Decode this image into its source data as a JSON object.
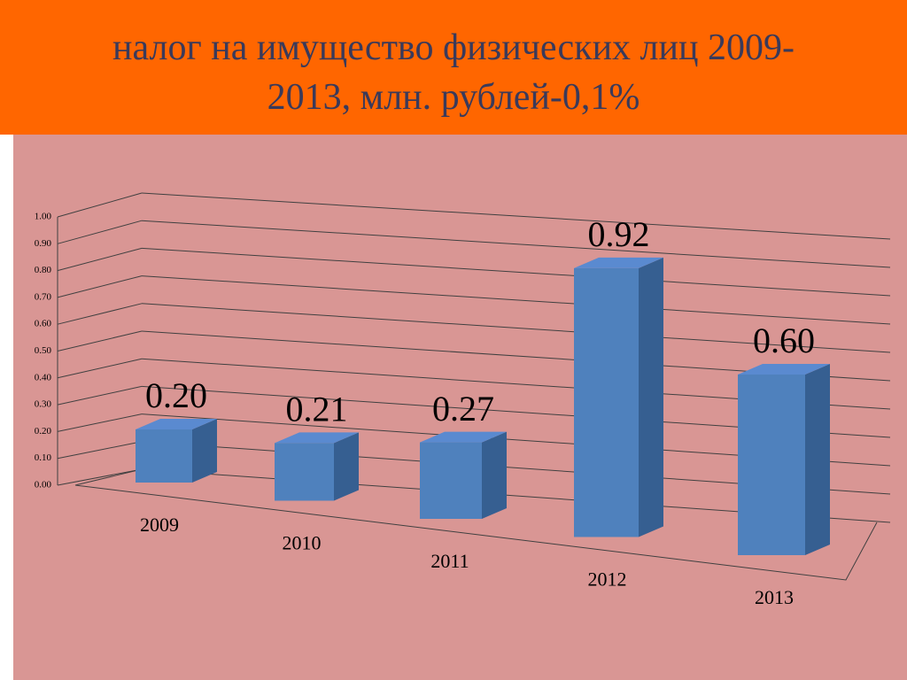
{
  "chart_data": {
    "type": "bar",
    "title": "налог на имущество физических лиц 2009-2013, млн. рублей-0,1%",
    "categories": [
      "2009",
      "2010",
      "2011",
      "2012",
      "2013"
    ],
    "values": [
      0.2,
      0.21,
      0.27,
      0.92,
      0.6
    ],
    "value_labels": [
      "0.20",
      "0.21",
      "0.27",
      "0.92",
      "0.60"
    ],
    "color": "#4f81bd",
    "ylim": [
      0,
      1
    ],
    "yticks": [
      {
        "value": 0,
        "label": "0.00"
      },
      {
        "value": 0.1,
        "label": "0.10"
      },
      {
        "value": 0.2,
        "label": "0.20"
      },
      {
        "value": 0.3,
        "label": "0.30"
      },
      {
        "value": 0.4,
        "label": "0.40"
      },
      {
        "value": 0.5,
        "label": "0.50"
      },
      {
        "value": 0.6,
        "label": "0.60"
      },
      {
        "value": 0.7,
        "label": "0.70"
      },
      {
        "value": 0.8,
        "label": "0.80"
      },
      {
        "value": 0.9,
        "label": "0.90"
      },
      {
        "value": 1,
        "label": "1.00"
      }
    ],
    "grid": true
  }
}
